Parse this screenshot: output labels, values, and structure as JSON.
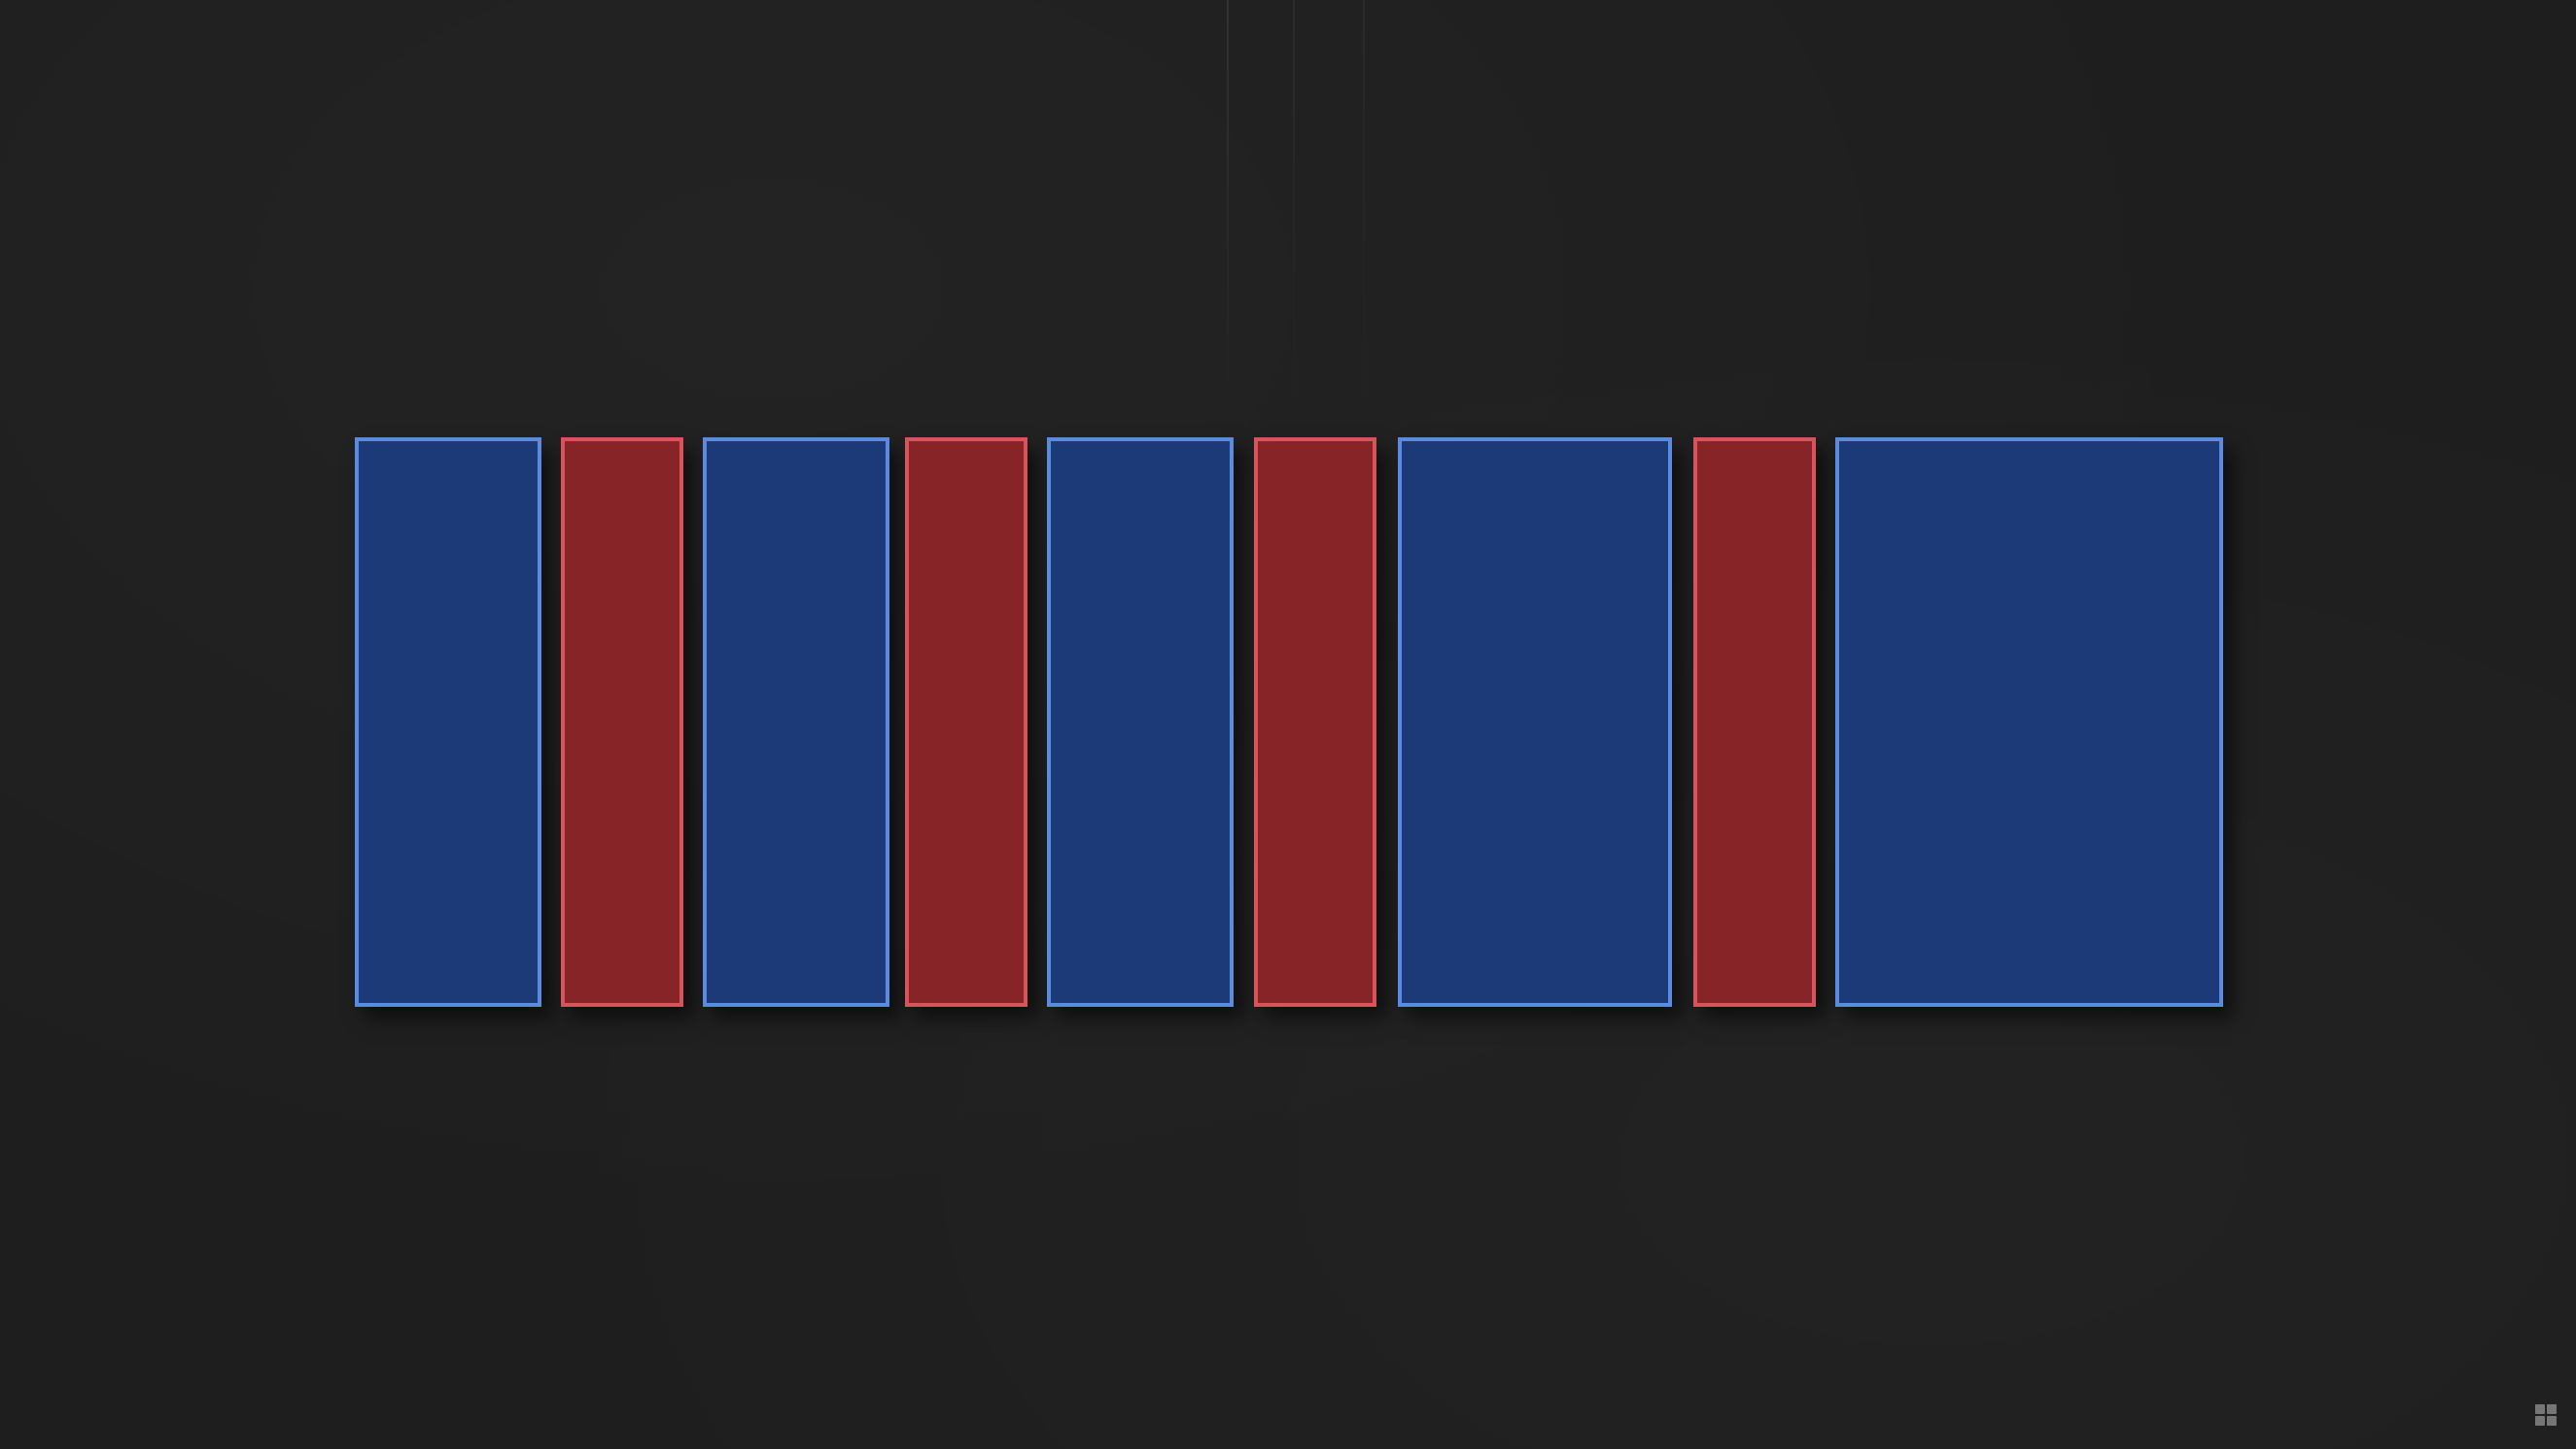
{
  "colors": {
    "background": "#1e1e1e",
    "blue_fill": "#1c3a78",
    "blue_border": "#5b8be0",
    "red_fill": "#862428",
    "red_border": "#d9545a"
  },
  "blocks": [
    {
      "kind": "blue"
    },
    {
      "kind": "red"
    },
    {
      "kind": "blue"
    },
    {
      "kind": "red"
    },
    {
      "kind": "blue"
    },
    {
      "kind": "red"
    },
    {
      "kind": "blue"
    },
    {
      "kind": "red"
    },
    {
      "kind": "blue"
    }
  ],
  "corner_badge": {
    "icon": "grid-logo-icon"
  }
}
